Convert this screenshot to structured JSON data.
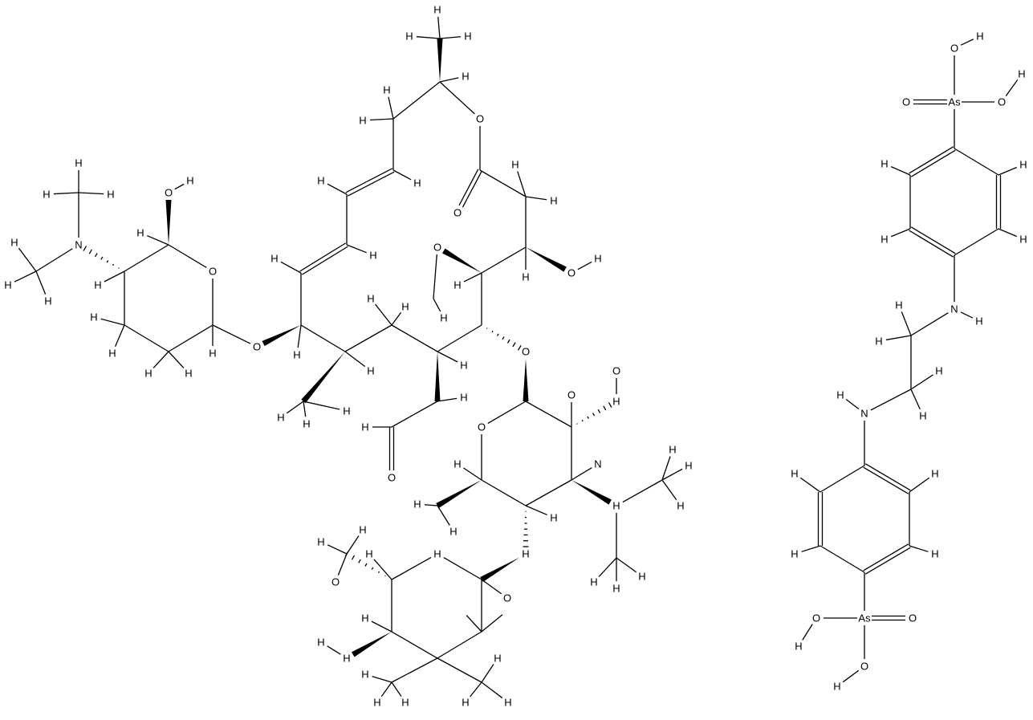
{
  "atoms": [
    "As",
    "O",
    "O",
    "H",
    "O",
    "H",
    "H",
    "H",
    "H",
    "H",
    "N",
    "H",
    "H",
    "H",
    "H",
    "H",
    "N",
    "H",
    "H",
    "H",
    "H",
    "H",
    "As",
    "O",
    "O",
    "H",
    "O",
    "H",
    "H",
    "H",
    "H",
    "H",
    "O",
    "H",
    "H",
    "H",
    "H",
    "H",
    "H",
    "H",
    "O",
    "H",
    "O",
    "H",
    "O",
    "H",
    "H",
    "N",
    "H",
    "H",
    "H",
    "H",
    "H",
    "H",
    "H",
    "H",
    "H",
    "H",
    "H",
    "H",
    "H",
    "H",
    "H",
    "H",
    "H",
    "H",
    "H",
    "O",
    "O",
    "H",
    "O",
    "H",
    "H",
    "O",
    "H",
    "H",
    "H",
    "O",
    "O",
    "H",
    "H",
    "H",
    "H",
    "N",
    "H",
    "H",
    "H",
    "H",
    "H",
    "H",
    "H",
    "O",
    "H",
    "O",
    "H",
    "O",
    "H",
    "H",
    "H",
    "H",
    "O",
    "H",
    "H",
    "H",
    "H",
    "H",
    "H",
    "H",
    "H",
    "H"
  ]
}
